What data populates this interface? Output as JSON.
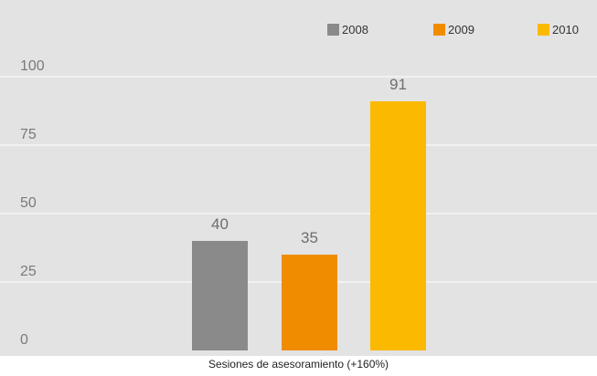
{
  "chart_data": {
    "type": "bar",
    "title": "",
    "categories": [
      "Sesiones de asesoramiento (+160%)"
    ],
    "series": [
      {
        "name": "2008",
        "values": [
          40
        ],
        "color": "#8a8a8a"
      },
      {
        "name": "2009",
        "values": [
          35
        ],
        "color": "#f08c00"
      },
      {
        "name": "2010",
        "values": [
          91
        ],
        "color": "#fbb900"
      }
    ],
    "xlabel": "Sesiones de asesoramiento (+160%)",
    "ylabel": "",
    "ylim": [
      0,
      100
    ],
    "yticks": [
      "0",
      "25",
      "50",
      "75",
      "100"
    ],
    "data_labels": [
      "40",
      "35",
      "91"
    ],
    "grid": true,
    "legend_position": "top-right",
    "background_color": "#e3e3e3",
    "grid_color": "#ffffff"
  }
}
